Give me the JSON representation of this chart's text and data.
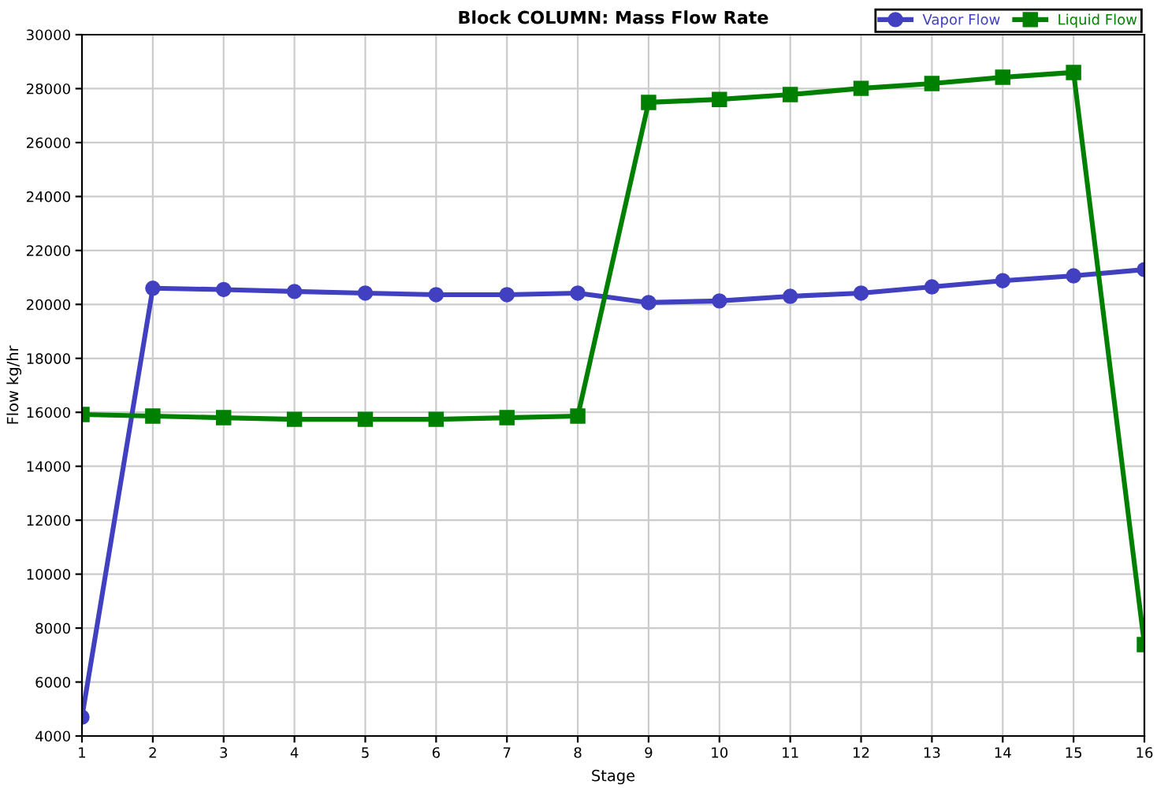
{
  "chart_data": {
    "type": "line",
    "title": "Block COLUMN: Mass Flow Rate",
    "xlabel": "Stage",
    "ylabel": "Flow kg/hr",
    "x": [
      1,
      2,
      3,
      4,
      5,
      6,
      7,
      8,
      9,
      10,
      11,
      12,
      13,
      14,
      15,
      16
    ],
    "series": [
      {
        "name": "Vapor Flow",
        "color": "#4040c0",
        "marker": "circle",
        "values": [
          4700,
          20600,
          20550,
          20480,
          20420,
          20360,
          20360,
          20420,
          20070,
          20130,
          20300,
          20420,
          20650,
          20880,
          21060,
          21290
        ]
      },
      {
        "name": "Liquid Flow",
        "color": "#008000",
        "marker": "square",
        "values": [
          15920,
          15860,
          15800,
          15740,
          15740,
          15740,
          15800,
          15860,
          27490,
          27600,
          27780,
          28010,
          28190,
          28420,
          28600,
          7390
        ]
      }
    ],
    "xlim": [
      1,
      16
    ],
    "xticks": [
      1,
      2,
      3,
      4,
      5,
      6,
      7,
      8,
      9,
      10,
      11,
      12,
      13,
      14,
      15,
      16
    ],
    "ylim": [
      4000,
      30000
    ],
    "yticks": [
      4000,
      6000,
      8000,
      10000,
      12000,
      14000,
      16000,
      18000,
      20000,
      22000,
      24000,
      26000,
      28000,
      30000
    ],
    "grid": true,
    "legend": "top right",
    "line_style": "solid"
  }
}
